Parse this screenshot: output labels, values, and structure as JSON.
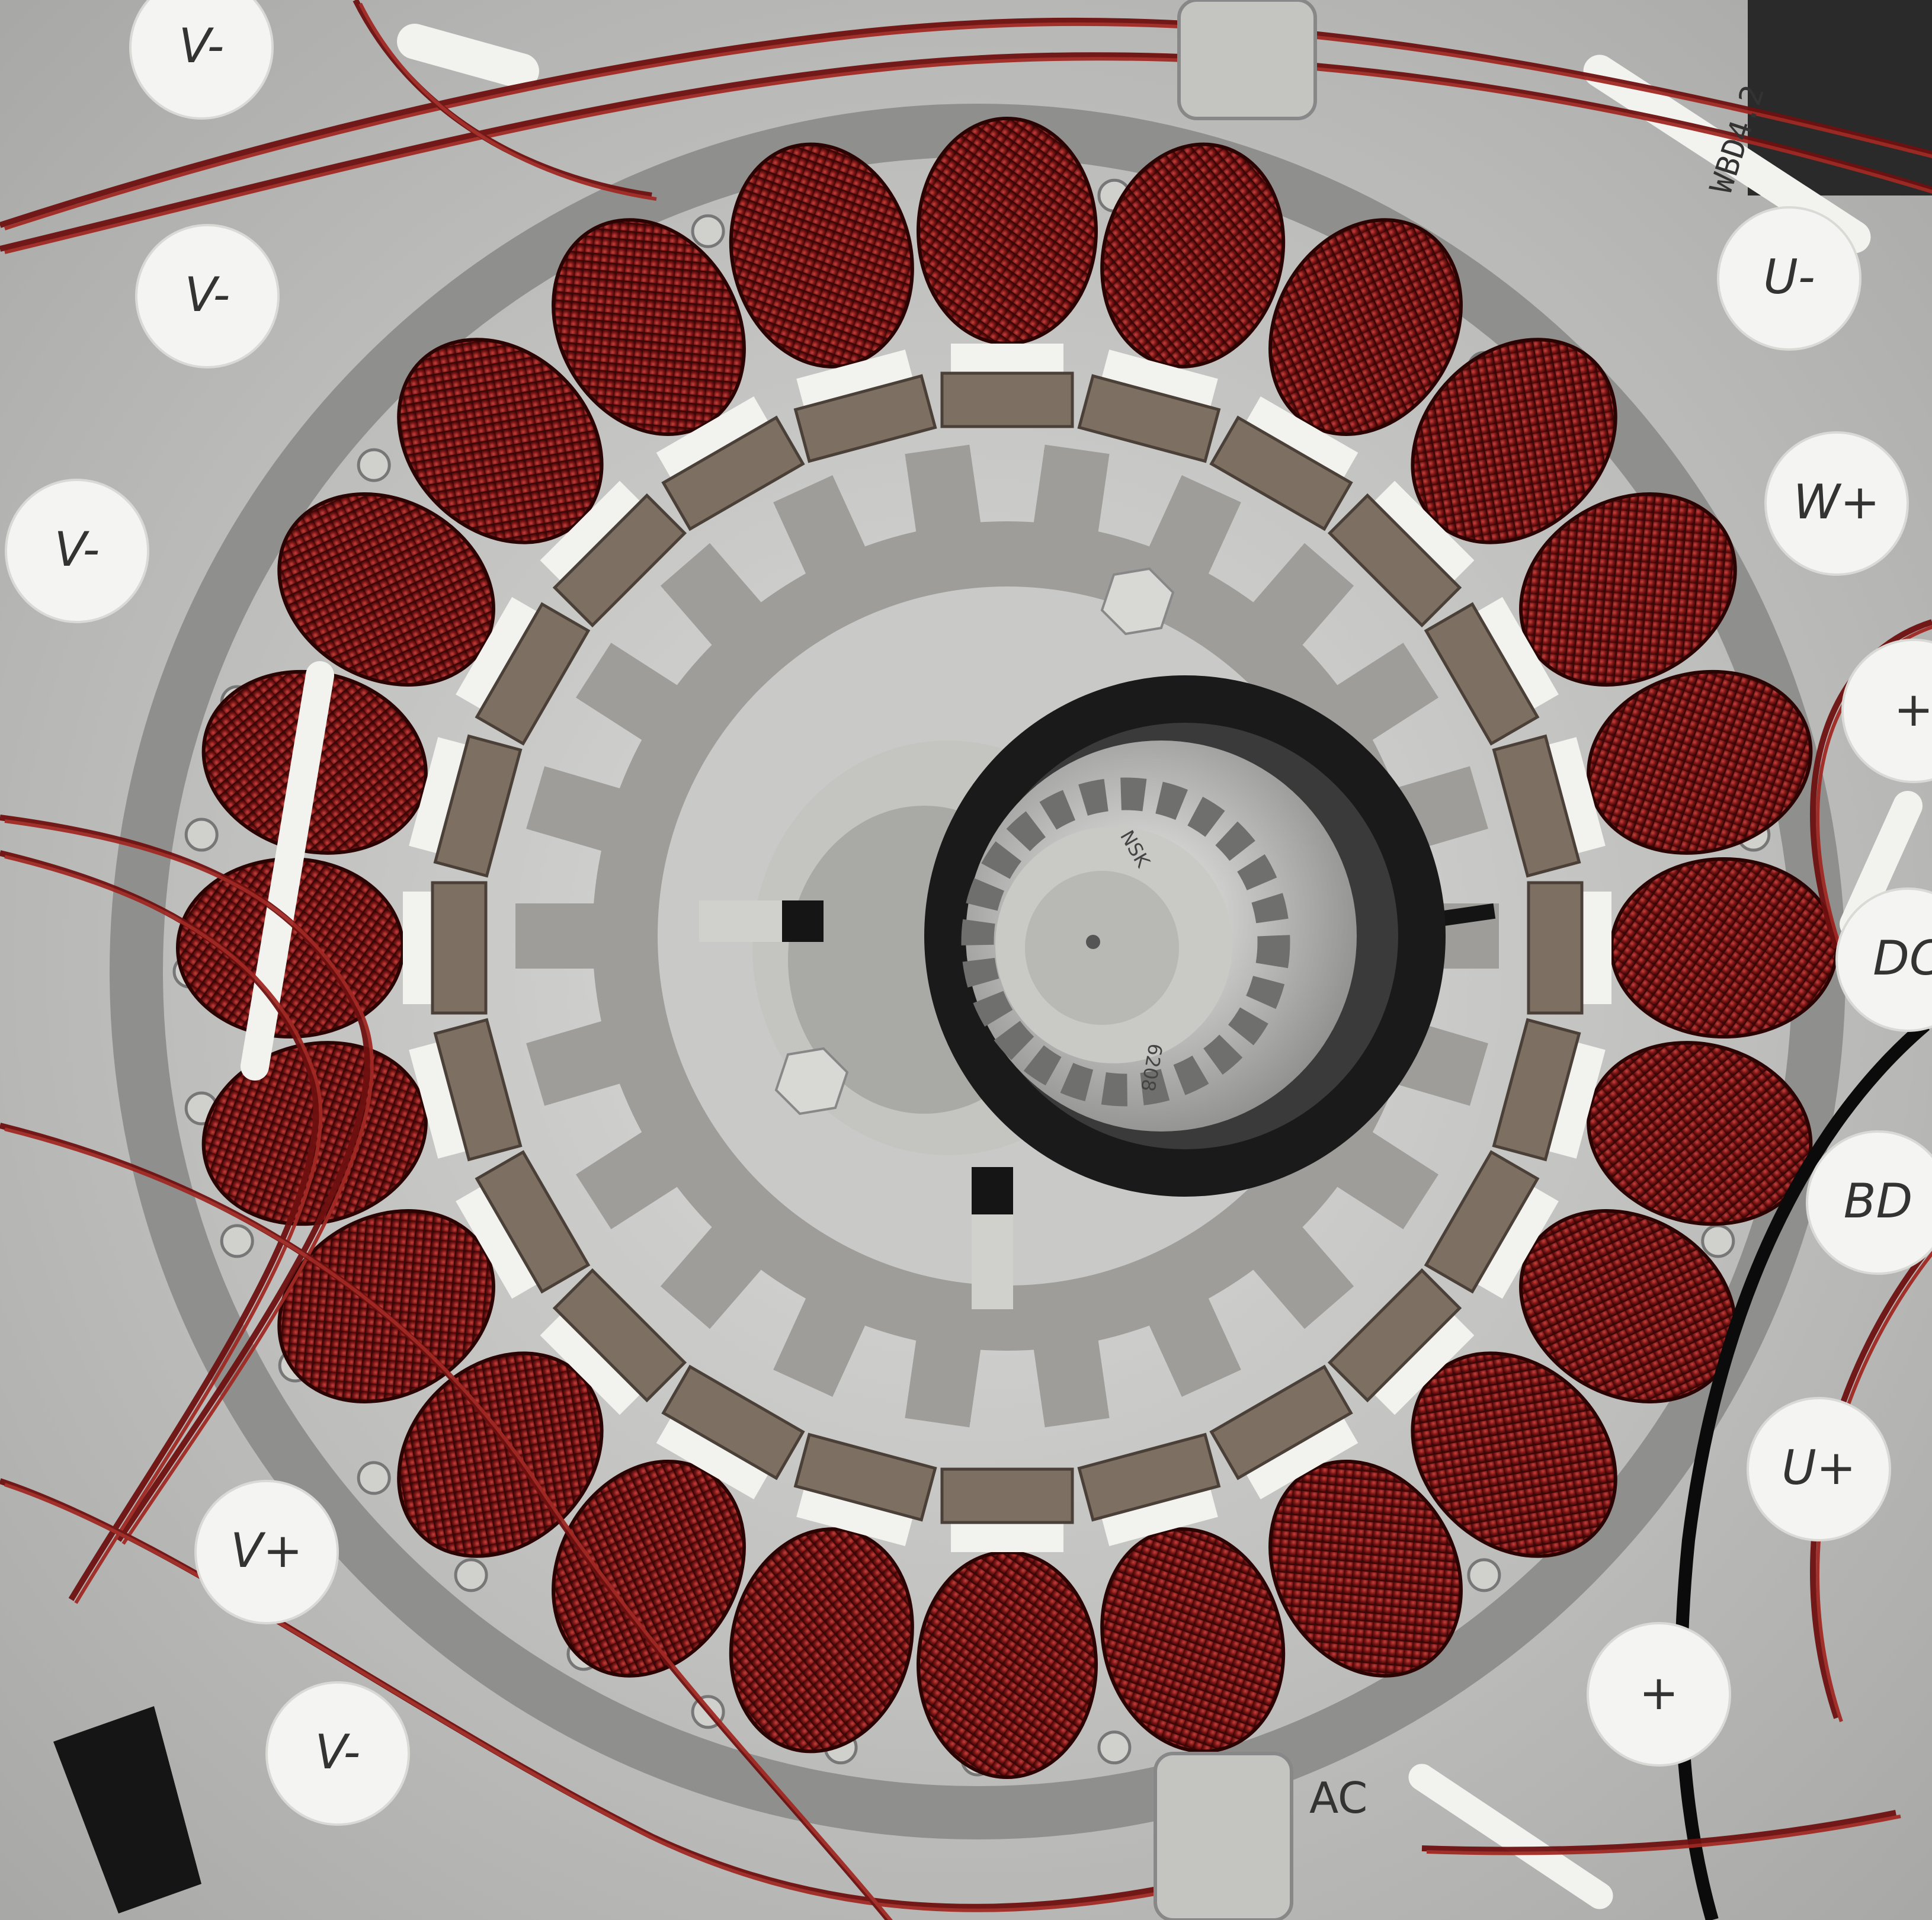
{
  "image": {
    "kind": "photograph",
    "subject": "Motor stator"
  },
  "palette": {
    "background_metal": "#c9c9c7",
    "plate_dark": "#8f8f8d",
    "stator_steel": "#9e9d9a",
    "copper_wire": "#7a1414",
    "copper_highlight": "#c2433e",
    "insulation_white": "#f2f2ef",
    "bearing_ring": "#1a1a1a",
    "bearing_steel": "#d2d2cf",
    "pole_shoe": "#7d7063"
  },
  "labels": {
    "stickers": [
      "V-",
      "V-",
      "V-",
      "V-",
      "U-",
      "W+",
      "+",
      "BD",
      "DC",
      "U+",
      "+",
      "V+"
    ],
    "tag_top_right": "WBD4.2",
    "tag_bottom": "AC",
    "bearing_brand": "NSK",
    "bearing_model": "6208"
  }
}
